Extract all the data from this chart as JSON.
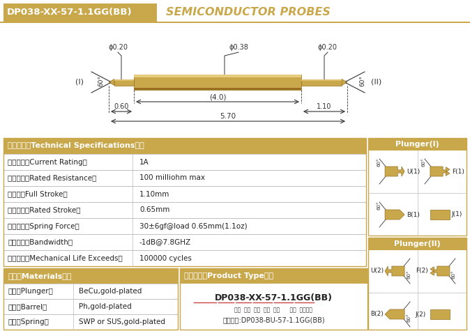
{
  "title_box_text": "DP038-XX-57-1.1GG(BB)",
  "title_box_color": "#C9A84C",
  "title_text": "SEMICONDUCTOR PROBES",
  "title_text_color": "#C9A84C",
  "bg_color": "#FFFFFF",
  "probe_color": "#C9A84C",
  "probe_color_light": "#D4B060",
  "probe_color_dark": "#A07830",
  "dim_color": "#333333",
  "border_color": "#C9A84C",
  "header_bg": "#C9A84C",
  "header_text_color": "#FFFFFF",
  "table_border": "#AAAAAA",
  "specs": [
    [
      "技术要求（Technical Specifications）：",
      ""
    ],
    [
      "额定电流（Current Rating）",
      "1A"
    ],
    [
      "额定电阻（Rated Resistance）",
      "100 milliohm max"
    ],
    [
      "满行程（Full Stroke）",
      "1.10mm"
    ],
    [
      "额定行程（Rated Stroke）",
      "0.65mm"
    ],
    [
      "额定弹力（Spring Force）",
      "30±6gf@load 0.65mm(1.1oz)"
    ],
    [
      "频率带宽（Bandwidth）",
      "-1dB@7.8GHZ"
    ],
    [
      "测试寿命（Mechanical Life Exceeds）",
      "100000 cycles"
    ]
  ],
  "materials": [
    [
      "材质（Materials）：",
      ""
    ],
    [
      "针头（Plunger）",
      "BeCu,gold-plated"
    ],
    [
      "针管（Barrel）",
      "Ph,gold-plated"
    ],
    [
      "弹簧（Spring）",
      "SWP or SUS,gold-plated"
    ]
  ],
  "product_type_header": "成品型号（Product Type）：",
  "product_type_main": "DP038-XX-57-1.1GG(BB)",
  "product_type_labels": "系列  规格  头型  总长  弹力      镀金  针头材质",
  "product_type_example": "订购单例:DP038-BU-57-1.1GG(BB)",
  "plunger1_header": "Plunger(I)",
  "plunger2_header": "Plunger(II)",
  "dim_phi020_left": "ϕ0.20",
  "dim_phi038": "ϕ0.38",
  "dim_phi020_right": "ϕ0.20",
  "dim_060": "0.60",
  "dim_40": "(4.0)",
  "dim_110": "1.10",
  "dim_570": "5.70",
  "label_I": "(I)",
  "label_II": "(II)",
  "gold": "#C9A84C",
  "gold_light": "#E8CC80",
  "gold_dark": "#9A7020",
  "white": "#FFFFFF",
  "black": "#222222",
  "table_border_color": "#BBBBBB",
  "red_underline": "#CC4444"
}
